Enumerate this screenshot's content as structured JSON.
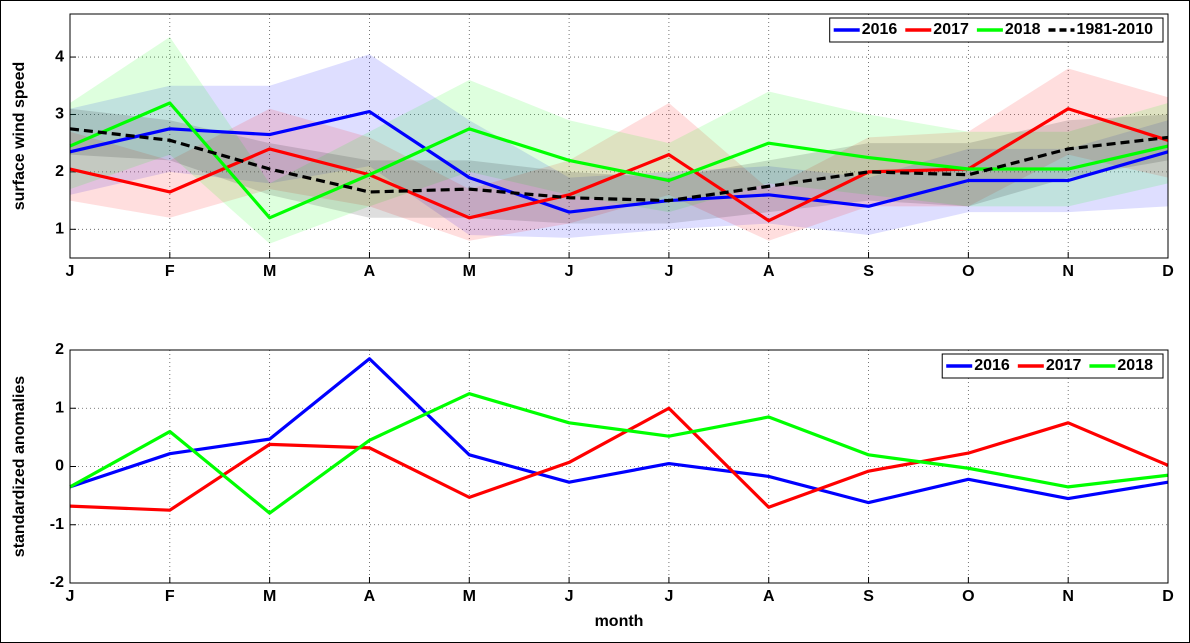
{
  "chart_data": [
    {
      "type": "line",
      "ylabel": "surface wind speed",
      "categories": [
        "J",
        "F",
        "M",
        "A",
        "M",
        "J",
        "J",
        "A",
        "S",
        "O",
        "N",
        "D"
      ],
      "ylim": [
        0.5,
        4.75
      ],
      "yticks": [
        1,
        2,
        3,
        4
      ],
      "grid": true,
      "legend": "upper right",
      "series": [
        {
          "name": "2016",
          "color": "#0000ff",
          "dash": false,
          "values": [
            2.35,
            2.75,
            2.65,
            3.05,
            1.9,
            1.3,
            1.5,
            1.6,
            1.4,
            1.85,
            1.85,
            2.35
          ],
          "upper": [
            3.1,
            3.5,
            3.5,
            4.05,
            2.9,
            1.9,
            2.0,
            2.1,
            1.9,
            2.4,
            2.4,
            2.9
          ],
          "lower": [
            1.6,
            2.0,
            1.8,
            2.1,
            0.9,
            0.85,
            1.0,
            1.1,
            0.9,
            1.3,
            1.3,
            1.4
          ]
        },
        {
          "name": "2017",
          "color": "#ff0000",
          "dash": false,
          "values": [
            2.05,
            1.65,
            2.4,
            1.95,
            1.2,
            1.6,
            2.3,
            1.15,
            2.0,
            2.05,
            3.1,
            2.55
          ],
          "upper": [
            2.7,
            2.2,
            3.1,
            2.6,
            1.7,
            2.2,
            3.2,
            1.7,
            2.6,
            2.7,
            3.8,
            3.3
          ],
          "lower": [
            1.5,
            1.2,
            1.7,
            1.4,
            0.8,
            1.1,
            1.6,
            0.8,
            1.4,
            1.4,
            2.3,
            1.9
          ]
        },
        {
          "name": "2018",
          "color": "#00ff00",
          "dash": false,
          "values": [
            2.45,
            3.2,
            1.2,
            1.95,
            2.75,
            2.2,
            1.85,
            2.5,
            2.25,
            2.05,
            2.05,
            2.45
          ],
          "upper": [
            3.2,
            4.35,
            1.8,
            2.7,
            3.6,
            2.9,
            2.5,
            3.4,
            3.0,
            2.7,
            2.7,
            3.2
          ],
          "lower": [
            1.7,
            2.3,
            0.75,
            1.4,
            2.0,
            1.6,
            1.3,
            1.8,
            1.6,
            1.4,
            1.4,
            1.8
          ]
        },
        {
          "name": "1981-2010",
          "color": "#000000",
          "dash": true,
          "values": [
            2.75,
            2.55,
            2.05,
            1.65,
            1.7,
            1.55,
            1.5,
            1.75,
            2.0,
            1.95,
            2.4,
            2.6
          ],
          "upper": [
            3.1,
            2.9,
            2.5,
            2.2,
            2.2,
            2.0,
            1.9,
            2.2,
            2.5,
            2.5,
            2.9,
            3.0
          ],
          "lower": [
            2.3,
            2.2,
            1.6,
            1.2,
            1.2,
            1.1,
            1.1,
            1.3,
            1.5,
            1.4,
            1.9,
            2.2
          ]
        }
      ]
    },
    {
      "type": "line",
      "ylabel": "standardized anomalies",
      "xlabel": "month",
      "categories": [
        "J",
        "F",
        "M",
        "A",
        "M",
        "J",
        "J",
        "A",
        "S",
        "O",
        "N",
        "D"
      ],
      "ylim": [
        -2,
        2
      ],
      "yticks": [
        -2,
        -1,
        0,
        1,
        2
      ],
      "grid": true,
      "legend": "upper right",
      "series": [
        {
          "name": "2016",
          "color": "#0000ff",
          "dash": false,
          "values": [
            -0.35,
            0.22,
            0.47,
            1.85,
            0.2,
            -0.27,
            0.05,
            -0.17,
            -0.62,
            -0.22,
            -0.55,
            -0.27
          ]
        },
        {
          "name": "2017",
          "color": "#ff0000",
          "dash": false,
          "values": [
            -0.68,
            -0.75,
            0.38,
            0.32,
            -0.53,
            0.07,
            1.0,
            -0.7,
            -0.08,
            0.23,
            0.75,
            0.02
          ]
        },
        {
          "name": "2018",
          "color": "#00ff00",
          "dash": false,
          "values": [
            -0.35,
            0.6,
            -0.8,
            0.45,
            1.25,
            0.75,
            0.52,
            0.85,
            0.2,
            -0.03,
            -0.35,
            -0.15
          ]
        }
      ]
    }
  ]
}
